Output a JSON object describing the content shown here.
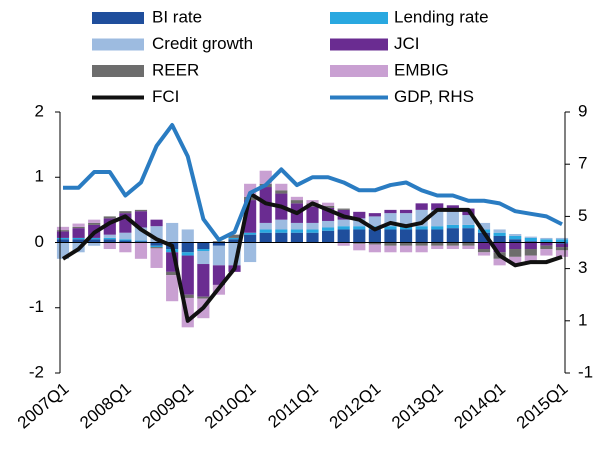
{
  "chart_data": {
    "type": "bar",
    "stacked": true,
    "categories": [
      "2007Q1",
      null,
      null,
      null,
      "2008Q1",
      null,
      null,
      null,
      "2009Q1",
      null,
      null,
      null,
      "2010Q1",
      null,
      null,
      null,
      "2011Q1",
      null,
      null,
      null,
      "2012Q1",
      null,
      null,
      null,
      "2013Q1",
      null,
      null,
      null,
      "2014Q1",
      null,
      null,
      null,
      "2015Q1"
    ],
    "series": [
      {
        "name": "BI rate",
        "type": "bar",
        "color": "#1f4e9c",
        "values": [
          0.05,
          0.05,
          0.05,
          0.05,
          0.03,
          0.02,
          -0.05,
          -0.1,
          -0.15,
          -0.1,
          -0.05,
          0.05,
          0.12,
          0.15,
          0.15,
          0.15,
          0.15,
          0.18,
          0.2,
          0.2,
          0.2,
          0.2,
          0.2,
          0.2,
          0.2,
          0.22,
          0.22,
          0.15,
          0.1,
          0.05,
          0.02,
          0.0,
          -0.02
        ]
      },
      {
        "name": "Lending rate",
        "type": "bar",
        "color": "#29a8e0",
        "values": [
          0.02,
          0.02,
          0.02,
          0.02,
          0.02,
          0.01,
          -0.02,
          -0.05,
          -0.05,
          -0.03,
          0,
          0.02,
          0.03,
          0.05,
          0.05,
          0.05,
          0.05,
          0.05,
          0.05,
          0.05,
          0.05,
          0.05,
          0.05,
          0.05,
          0.05,
          0.05,
          0.05,
          0.05,
          0.05,
          0.05,
          0.05,
          0.05,
          0.05
        ]
      },
      {
        "name": "Credit growth",
        "type": "bar",
        "color": "#9dbbe0",
        "values": [
          -0.25,
          -0.15,
          -0.05,
          0.05,
          0.1,
          0.2,
          0.25,
          0.3,
          0.2,
          -0.2,
          -0.3,
          -0.35,
          -0.3,
          0.1,
          0.15,
          0.1,
          0.1,
          0.1,
          0.1,
          0.12,
          0.15,
          0.2,
          0.2,
          0.25,
          0.25,
          0.2,
          0.15,
          0.1,
          0.05,
          0.03,
          0.02,
          0.02,
          0.02
        ]
      },
      {
        "name": "JCI",
        "type": "bar",
        "color": "#6a2c91",
        "values": [
          0.1,
          0.15,
          0.2,
          0.25,
          0.3,
          0.25,
          0.1,
          -0.3,
          -0.6,
          -0.5,
          -0.3,
          -0.1,
          0.5,
          0.55,
          0.4,
          0.3,
          0.25,
          0.2,
          0.15,
          0.1,
          0.05,
          0.05,
          0.05,
          0.1,
          0.1,
          0.1,
          0.1,
          -0.1,
          -0.15,
          -0.1,
          -0.1,
          -0.05,
          -0.05
        ]
      },
      {
        "name": "REER",
        "type": "bar",
        "color": "#6d6d6d",
        "values": [
          0.02,
          0.02,
          0.03,
          0.03,
          0.03,
          0.02,
          -0.02,
          -0.05,
          -0.05,
          -0.03,
          0.02,
          0.05,
          0.05,
          0.05,
          0.05,
          0.05,
          0.05,
          0.03,
          0.02,
          -0.02,
          -0.03,
          -0.05,
          -0.05,
          -0.05,
          -0.05,
          -0.05,
          -0.05,
          -0.05,
          -0.1,
          -0.12,
          -0.1,
          -0.05,
          -0.05
        ]
      },
      {
        "name": "EMBIG",
        "type": "bar",
        "color": "#c9a0d2",
        "values": [
          0.05,
          0.05,
          0.05,
          -0.1,
          -0.15,
          -0.25,
          -0.3,
          -0.4,
          -0.45,
          -0.3,
          -0.15,
          0,
          0.2,
          0.2,
          0.1,
          0.05,
          0.05,
          0.05,
          -0.05,
          -0.1,
          -0.12,
          -0.1,
          -0.1,
          -0.1,
          -0.05,
          -0.05,
          -0.05,
          -0.05,
          -0.1,
          -0.1,
          -0.1,
          -0.1,
          -0.1
        ]
      },
      {
        "name": "FCI",
        "type": "line",
        "color": "#111111",
        "values": [
          -0.25,
          -0.1,
          0.15,
          0.3,
          0.4,
          0.2,
          0.05,
          -0.05,
          -1.2,
          -1.0,
          -0.7,
          -0.4,
          0.75,
          0.6,
          0.55,
          0.45,
          0.6,
          0.5,
          0.4,
          0.35,
          0.2,
          0.3,
          0.25,
          0.3,
          0.5,
          0.5,
          0.5,
          0.15,
          -0.2,
          -0.35,
          -0.3,
          -0.3,
          -0.22
        ]
      },
      {
        "name": "GDP, RHS",
        "type": "line",
        "axis": "y2",
        "color": "#2a7cc2",
        "values": [
          6.1,
          6.1,
          6.7,
          6.7,
          5.8,
          6.3,
          7.7,
          8.5,
          7.3,
          4.9,
          4.1,
          4.4,
          5.9,
          6.2,
          6.8,
          6.2,
          6.5,
          6.5,
          6.3,
          6.0,
          6.0,
          6.2,
          6.3,
          6.0,
          5.8,
          5.8,
          5.6,
          5.6,
          5.5,
          5.2,
          5.1,
          5.0,
          4.7
        ]
      }
    ],
    "ylim": [
      -2,
      2
    ],
    "yticks": [
      -2,
      -1,
      0,
      1,
      2
    ],
    "y2lim": [
      -1,
      9
    ],
    "y2ticks": [
      -1,
      1,
      3,
      5,
      7,
      9
    ]
  }
}
